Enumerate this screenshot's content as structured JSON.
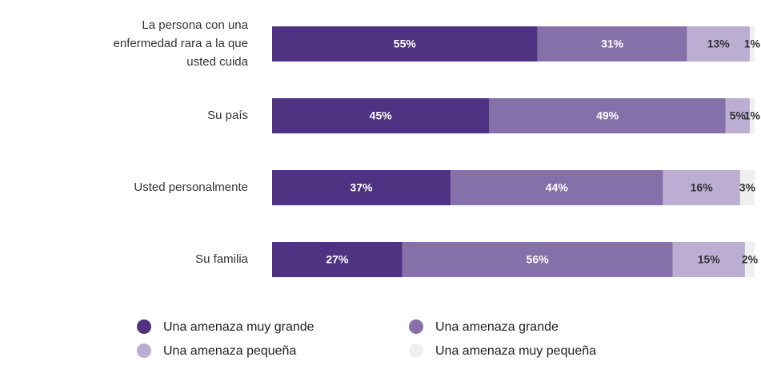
{
  "chart_data": {
    "type": "stacked-bar-horizontal",
    "categories": [
      "La persona con una enfermedad rara a la que usted cuida",
      "Su país",
      "Usted personalmente",
      "Su familia"
    ],
    "series": [
      {
        "name": "Una amenaza muy grande",
        "color": "#4f3282",
        "values": [
          55,
          45,
          37,
          27
        ],
        "value_labels": [
          "55%",
          "45%",
          "37%",
          "27%"
        ]
      },
      {
        "name": "Una amenaza grande",
        "color": "#8670aa",
        "values": [
          31,
          49,
          44,
          56
        ],
        "value_labels": [
          "31%",
          "49%",
          "44%",
          "56%"
        ]
      },
      {
        "name": "Una amenaza pequeña",
        "color": "#bcaed3",
        "values": [
          13,
          5,
          16,
          15
        ],
        "value_labels": [
          "13%",
          "5%",
          "16%",
          "15%"
        ]
      },
      {
        "name": "Una amenaza muy pequeña",
        "color": "#efefef",
        "values": [
          1,
          1,
          3,
          2
        ],
        "value_labels": [
          "1%",
          "1%",
          "3%",
          "2%"
        ]
      }
    ]
  }
}
